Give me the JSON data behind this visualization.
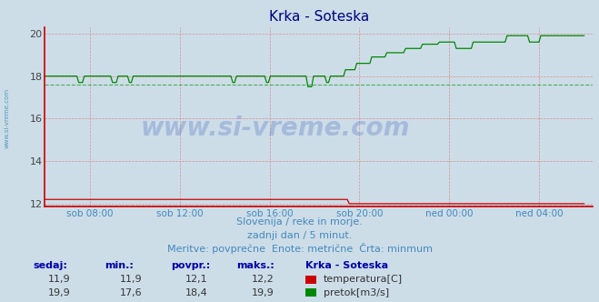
{
  "title": "Krka - Soteska",
  "title_color": "#000080",
  "background_color": "#ccdde8",
  "plot_bg_color": "#ccdde8",
  "grid_color": "#dd8888",
  "ylabel": "",
  "ylim": [
    11.85,
    20.3
  ],
  "yticks": [
    12,
    14,
    16,
    18,
    20
  ],
  "text_color": "#4488bb",
  "xtick_labels": [
    "sob 08:00",
    "sob 12:00",
    "sob 16:00",
    "sob 20:00",
    "ned 00:00",
    "ned 04:00"
  ],
  "temp_color": "#cc0000",
  "flow_color": "#008800",
  "temp_min": 11.9,
  "flow_min": 17.6,
  "subtitle1": "Slovenija / reke in morje.",
  "subtitle2": "zadnji dan / 5 minut.",
  "subtitle3": "Meritve: povprečne  Enote: metrične  Črta: minmum",
  "watermark": "www.si-vreme.com",
  "left_label": "www.si-vreme.com",
  "table_headers": [
    "sedaj:",
    "min.:",
    "povpr.:",
    "maks.:",
    "Krka - Soteska"
  ],
  "temp_row": [
    "11,9",
    "11,9",
    "12,1",
    "12,2",
    "temperatura[C]"
  ],
  "flow_row": [
    "19,9",
    "17,6",
    "18,4",
    "19,9",
    "pretok[m3/s]"
  ]
}
